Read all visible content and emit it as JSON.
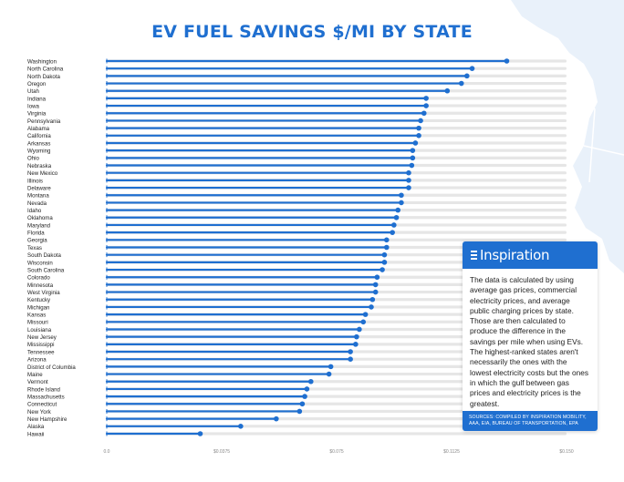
{
  "colors": {
    "accent": "#1f6fd0",
    "track": "#e6e6e6",
    "map": "#e9f1fa"
  },
  "header": {
    "title": "EV FUEL SAVINGS $/MI BY STATE"
  },
  "panel": {
    "brand": "Inspiration",
    "body": "The data is calculated by using average gas prices, commercial electricity prices, and average public charging prices by state. Those are then calculated to produce the difference in the savings per mile when using EVs. The highest-ranked states aren't necessarily the ones with the lowest electricity costs but the ones in which the gulf between gas prices and electricity prices is the greatest.",
    "sources": "SOURCES: COMPILED BY INSPIRATION MOBILITY, AAA, EIA, BUREAU OF TRANSPORTATION, EPA"
  },
  "chart_data": {
    "type": "bar",
    "orientation": "horizontal",
    "style": "lollipop",
    "title": "EV FUEL SAVINGS $/MI BY STATE",
    "xlabel": "",
    "ylabel": "",
    "xlim": [
      0,
      0.15
    ],
    "xticks": [
      "0.0",
      "$0.0375",
      "$0.075",
      "$0.1125",
      "$0.150"
    ],
    "xtick_values": [
      0,
      0.0375,
      0.075,
      0.1125,
      0.15
    ],
    "grid": false,
    "categories": [
      "Washington",
      "North Carolina",
      "North Dakota",
      "Oregon",
      "Utah",
      "Indiana",
      "Iowa",
      "Virginia",
      "Pennsylvania",
      "Alabama",
      "California",
      "Arkansas",
      "Wyoming",
      "Ohio",
      "Nebraska",
      "New Mexico",
      "Illinois",
      "Delaware",
      "Montana",
      "Nevada",
      "Idaho",
      "Oklahoma",
      "Maryland",
      "Florida",
      "Georgia",
      "Texas",
      "South Dakota",
      "Wisconsin",
      "South Carolina",
      "Colorado",
      "Minnesota",
      "West Virginia",
      "Kentucky",
      "Michigan",
      "Kansas",
      "Missouri",
      "Louisiana",
      "New Jersey",
      "Mississippi",
      "Tennessee",
      "Arizona",
      "District of Columbia",
      "Maine",
      "Vermont",
      "Rhode Island",
      "Massachusetts",
      "Connecticut",
      "New York",
      "New Hampshire",
      "Alaska",
      "Hawaii"
    ],
    "values": [
      0.1305,
      0.1192,
      0.1175,
      0.1157,
      0.1111,
      0.1042,
      0.1042,
      0.1035,
      0.1024,
      0.1018,
      0.1018,
      0.1007,
      0.0998,
      0.0998,
      0.0995,
      0.0985,
      0.0985,
      0.0985,
      0.0961,
      0.0961,
      0.095,
      0.0945,
      0.0937,
      0.0932,
      0.0913,
      0.0913,
      0.0906,
      0.0906,
      0.0899,
      0.0882,
      0.0877,
      0.0877,
      0.0867,
      0.0863,
      0.0844,
      0.0837,
      0.0824,
      0.0815,
      0.0812,
      0.0795,
      0.0795,
      0.0731,
      0.0725,
      0.0666,
      0.0653,
      0.0646,
      0.0638,
      0.0629,
      0.0553,
      0.0437,
      0.0305
    ]
  }
}
